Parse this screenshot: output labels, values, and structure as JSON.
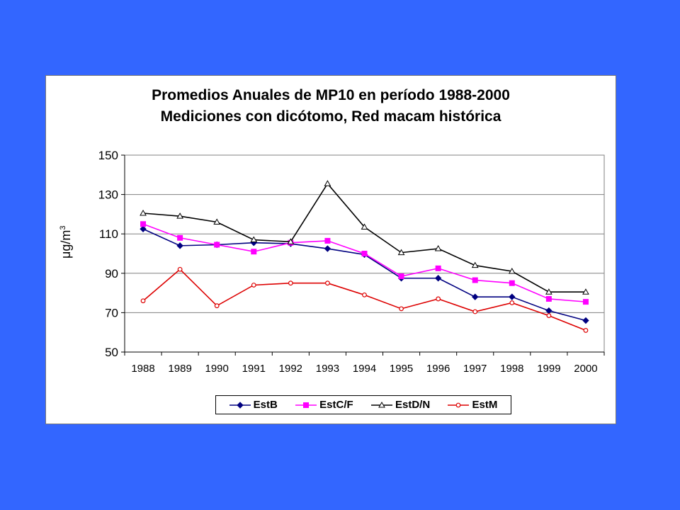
{
  "chart_data": {
    "type": "line",
    "title": "Promedios Anuales de MP10 en período 1988-2000",
    "subtitle": "Mediciones con dicótomo, Red macam histórica",
    "ylabel": "μg/m",
    "ylabel_superscript": "3",
    "xlabel": "",
    "ylim": [
      50,
      150
    ],
    "yticks": [
      "50",
      "70",
      "90",
      "110",
      "130",
      "150"
    ],
    "categories": [
      "1988",
      "1989",
      "1990",
      "1991",
      "1992",
      "1993",
      "1994",
      "1995",
      "1996",
      "1997",
      "1998",
      "1999",
      "2000"
    ],
    "grid": "horizontal",
    "legend": "bottom",
    "series": [
      {
        "name": "EstB",
        "color": "#000080",
        "marker": "diamond",
        "values": [
          112.5,
          104,
          104.5,
          105.5,
          105,
          102.5,
          99.5,
          87.5,
          87.5,
          78,
          78,
          71,
          66
        ]
      },
      {
        "name": "EstC/F",
        "color": "#ff00ff",
        "marker": "square",
        "values": [
          115,
          108,
          104.5,
          101,
          105.5,
          106.5,
          100,
          88.5,
          92.5,
          86.5,
          85,
          77,
          75.5
        ]
      },
      {
        "name": "EstD/N",
        "color": "#000000",
        "marker": "triangle",
        "values": [
          120.5,
          119,
          116,
          107,
          106,
          135.5,
          113.5,
          100.5,
          102.5,
          94,
          91,
          80.5,
          80.5
        ]
      },
      {
        "name": "EstM",
        "color": "#dd0000",
        "marker": "circle",
        "values": [
          76,
          92,
          73.5,
          84,
          85,
          85,
          79,
          72,
          77,
          70.5,
          75,
          68.5,
          61
        ]
      }
    ]
  }
}
